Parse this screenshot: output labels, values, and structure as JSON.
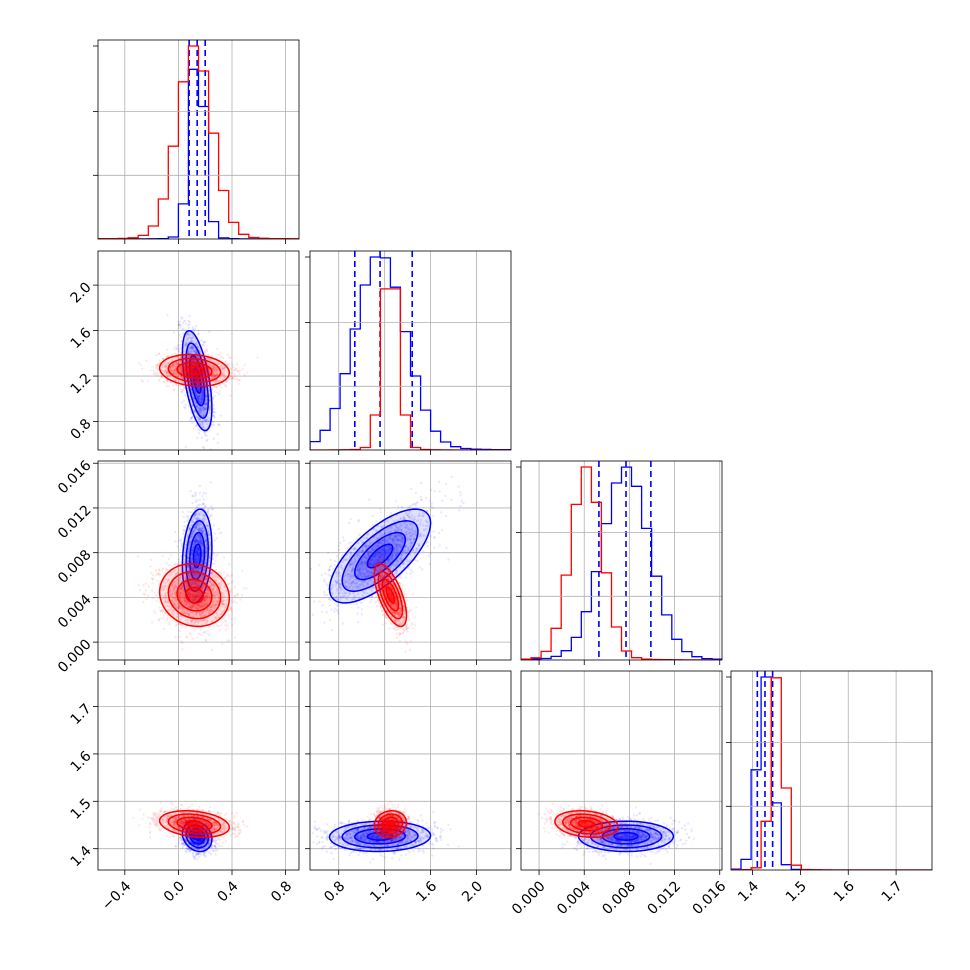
{
  "colors": {
    "series_a": "#0000ff",
    "series_b": "#ff0000"
  },
  "chart_data": {
    "type": "corner",
    "title": "",
    "parameters": [
      {
        "range": [
          -0.6,
          0.9
        ],
        "ticks": [
          -0.4,
          0.0,
          0.4,
          0.8
        ],
        "tick_labels": [
          "−0.4",
          "0.0",
          "0.4",
          "0.8"
        ]
      },
      {
        "range": [
          0.55,
          2.3
        ],
        "ticks": [
          0.8,
          1.2,
          1.6,
          2.0
        ],
        "tick_labels": [
          "0.8",
          "1.2",
          "1.6",
          "2.0"
        ]
      },
      {
        "range": [
          -0.0016,
          0.0162
        ],
        "ticks": [
          0.0,
          0.004,
          0.008,
          0.012,
          0.016
        ],
        "tick_labels": [
          "0.000",
          "0.004",
          "0.008",
          "0.012",
          "0.016"
        ]
      },
      {
        "range": [
          1.355,
          1.775
        ],
        "ticks": [
          1.4,
          1.5,
          1.6,
          1.7
        ],
        "tick_labels": [
          "1.4",
          "1.5",
          "1.6",
          "1.7"
        ]
      }
    ],
    "grid": true,
    "series": [
      {
        "color": "#0000ff",
        "mean": [
          0.14,
          1.16,
          0.0077,
          1.426
        ],
        "sigma": [
          0.055,
          0.22,
          0.0021,
          0.016
        ],
        "quantiles": [
          [
            0.08,
            0.14,
            0.2
          ],
          [
            0.94,
            1.16,
            1.44
          ],
          [
            0.0053,
            0.0077,
            0.0099
          ],
          [
            1.41,
            1.426,
            1.442
          ]
        ],
        "corr": [
          [
            1,
            -0.55,
            0.2,
            -0.2
          ],
          [
            -0.55,
            1,
            0.7,
            0.05
          ],
          [
            0.2,
            0.7,
            1,
            0.0
          ],
          [
            -0.2,
            0.05,
            0.0,
            1
          ]
        ]
      },
      {
        "color": "#ff0000",
        "mean": [
          0.12,
          1.25,
          0.0042,
          1.452
        ],
        "sigma": [
          0.13,
          0.07,
          0.0014,
          0.014
        ],
        "corr": [
          [
            1,
            -0.15,
            -0.1,
            -0.25
          ],
          [
            -0.15,
            1,
            -0.65,
            0.1
          ],
          [
            -0.1,
            -0.65,
            1,
            -0.2
          ],
          [
            -0.25,
            0.1,
            -0.2,
            1
          ]
        ]
      }
    ]
  }
}
